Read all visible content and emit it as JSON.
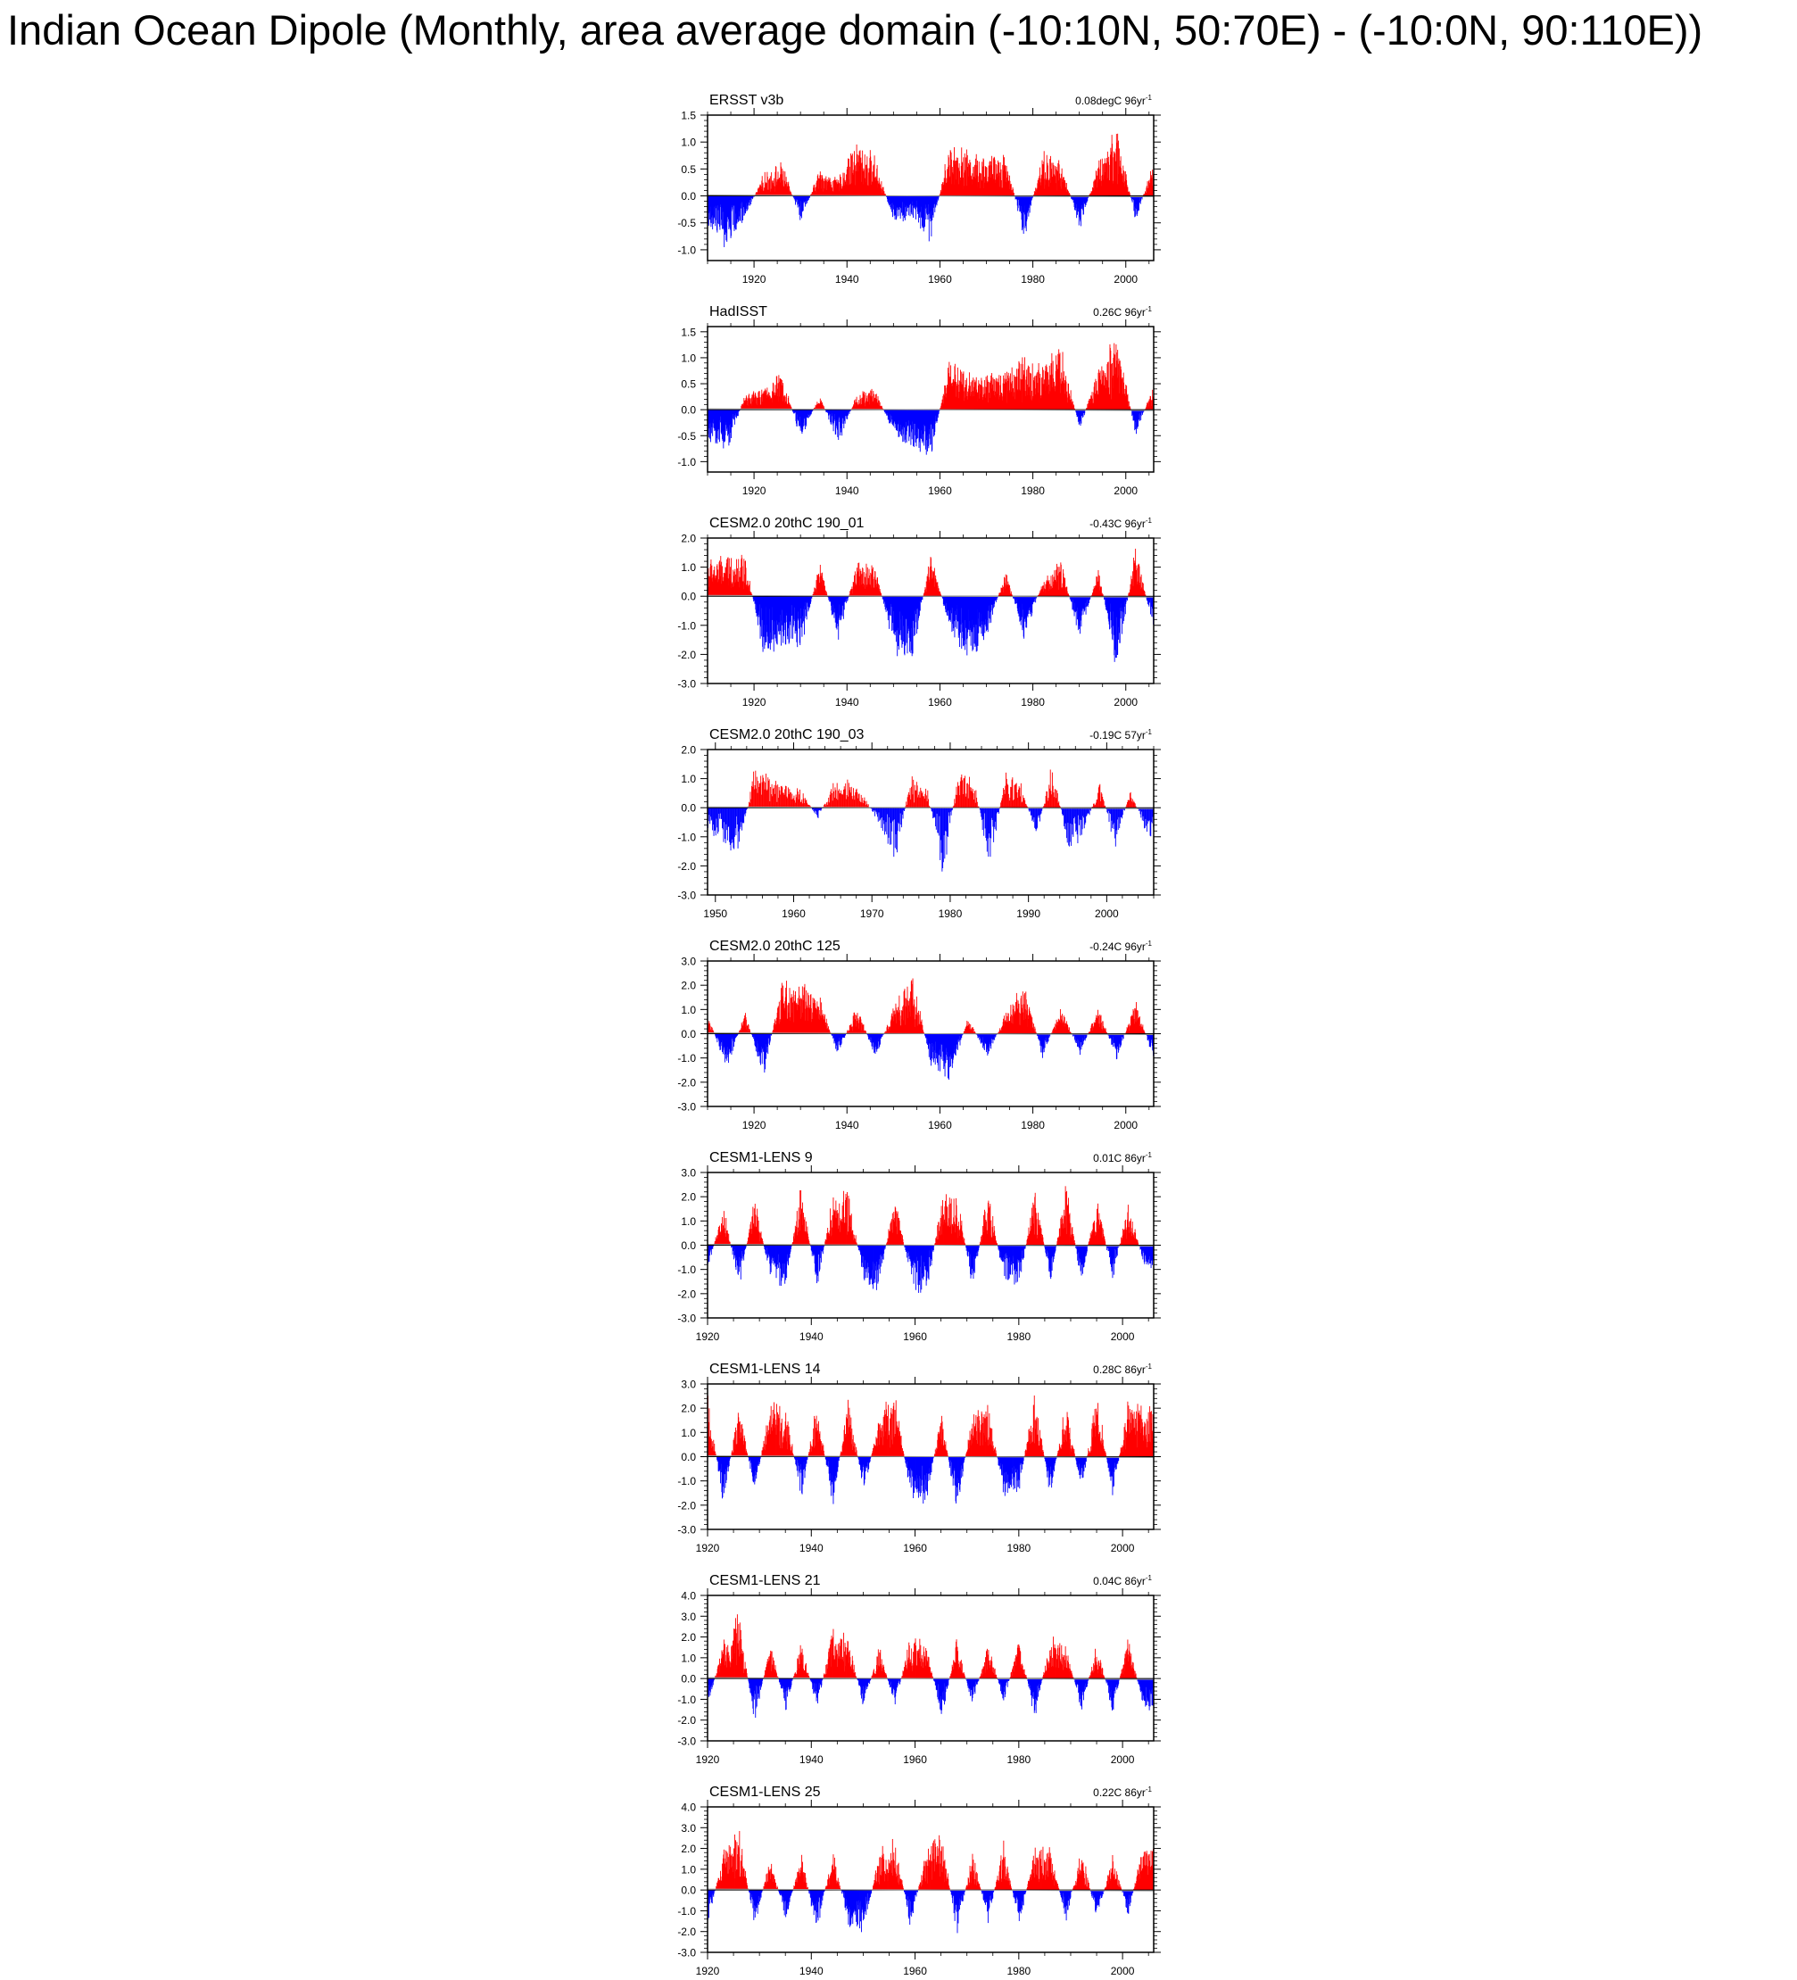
{
  "page": {
    "title": "Indian Ocean Dipole (Monthly, area average domain (-10:10N, 50:70E) - (-10:0N, 90:110E))"
  },
  "colors": {
    "positive": "#ff0000",
    "negative": "#0000ff",
    "axis": "#000000",
    "reference": "#9a9a9a"
  },
  "chart_data": [
    {
      "type": "bar",
      "left_label": "ERSST v3b",
      "right_label": "0.08degC 96yr",
      "right_label_sup": "-1",
      "xlim": [
        1910,
        2006
      ],
      "ylim": [
        -1.2,
        1.5
      ],
      "yticks": [
        -1.0,
        -0.5,
        0.0,
        0.5,
        1.0,
        1.5
      ],
      "ytick_labels": [
        "-1.0",
        "-0.5",
        "0.0",
        "0.5",
        "1.0",
        "1.5"
      ],
      "xticks": [
        1920,
        1940,
        1960,
        1980,
        2000
      ],
      "xtick_labels": [
        "1920",
        "1940",
        "1960",
        "1980",
        "2000"
      ],
      "series_years": [
        1910,
        1914,
        1918,
        1922,
        1926,
        1930,
        1934,
        1938,
        1942,
        1946,
        1950,
        1954,
        1958,
        1962,
        1966,
        1970,
        1974,
        1978,
        1982,
        1986,
        1990,
        1994,
        1998,
        2002,
        2006
      ],
      "values": [
        -0.6,
        -0.9,
        -0.4,
        0.4,
        0.6,
        -0.5,
        0.5,
        0.3,
        1.0,
        0.7,
        -0.5,
        -0.4,
        -0.8,
        1.0,
        0.8,
        0.7,
        0.8,
        -0.8,
        0.8,
        0.6,
        -0.6,
        0.6,
        1.3,
        -0.5,
        0.7
      ]
    },
    {
      "type": "bar",
      "left_label": "HadISST",
      "right_label": "0.26C 96yr",
      "right_label_sup": "-1",
      "xlim": [
        1910,
        2006
      ],
      "ylim": [
        -1.2,
        1.6
      ],
      "yticks": [
        -1.0,
        -0.5,
        0.0,
        0.5,
        1.0,
        1.5
      ],
      "ytick_labels": [
        "-1.0",
        "-0.5",
        "0.0",
        "0.5",
        "1.0",
        "1.5"
      ],
      "xticks": [
        1920,
        1940,
        1960,
        1980,
        2000
      ],
      "xtick_labels": [
        "1920",
        "1940",
        "1960",
        "1980",
        "2000"
      ],
      "series_years": [
        1910,
        1914,
        1918,
        1922,
        1926,
        1930,
        1934,
        1938,
        1942,
        1946,
        1950,
        1954,
        1958,
        1962,
        1966,
        1970,
        1974,
        1978,
        1982,
        1986,
        1990,
        1994,
        1998,
        2002,
        2006
      ],
      "values": [
        -0.6,
        -0.8,
        0.3,
        0.4,
        0.7,
        -0.6,
        0.3,
        -0.7,
        0.3,
        0.4,
        -0.5,
        -0.7,
        -0.9,
        1.0,
        0.7,
        0.6,
        0.8,
        1.0,
        0.8,
        1.2,
        -0.4,
        0.8,
        1.5,
        -0.5,
        0.5
      ]
    },
    {
      "type": "bar",
      "left_label": "CESM2.0 20thC 190_01",
      "right_label": "-0.43C 96yr",
      "right_label_sup": "-1",
      "xlim": [
        1910,
        2006
      ],
      "ylim": [
        -3.0,
        2.0
      ],
      "yticks": [
        -3.0,
        -2.0,
        -1.0,
        0.0,
        1.0,
        2.0
      ],
      "ytick_labels": [
        "-3.0",
        "-2.0",
        "-1.0",
        "0.0",
        "1.0",
        "2.0"
      ],
      "xticks": [
        1920,
        1940,
        1960,
        1980,
        2000
      ],
      "xtick_labels": [
        "1920",
        "1940",
        "1960",
        "1980",
        "2000"
      ],
      "series_years": [
        1910,
        1914,
        1918,
        1922,
        1926,
        1930,
        1934,
        1938,
        1942,
        1946,
        1950,
        1954,
        1958,
        1962,
        1966,
        1970,
        1974,
        1978,
        1982,
        1986,
        1990,
        1994,
        1998,
        2002,
        2006
      ],
      "values": [
        1.2,
        1.3,
        1.4,
        -2.1,
        -1.6,
        -1.9,
        1.2,
        -1.5,
        1.1,
        1.0,
        -1.8,
        -2.2,
        1.6,
        -1.2,
        -2.2,
        -1.4,
        0.9,
        -1.4,
        0.5,
        1.2,
        -1.5,
        1.0,
        -2.6,
        1.7,
        -1.3
      ]
    },
    {
      "type": "bar",
      "left_label": "CESM2.0 20thC 190_03",
      "right_label": "-0.19C 57yr",
      "right_label_sup": "-1",
      "xlim": [
        1949,
        2006
      ],
      "ylim": [
        -3.0,
        2.0
      ],
      "yticks": [
        -3.0,
        -2.0,
        -1.0,
        0.0,
        1.0,
        2.0
      ],
      "ytick_labels": [
        "-3.0",
        "-2.0",
        "-1.0",
        "0.0",
        "1.0",
        "2.0"
      ],
      "xticks": [
        1950,
        1960,
        1970,
        1980,
        1990,
        2000
      ],
      "xtick_labels": [
        "1950",
        "1960",
        "1970",
        "1980",
        "1990",
        "2000"
      ],
      "series_years": [
        1949,
        1951,
        1953,
        1955,
        1957,
        1959,
        1961,
        1963,
        1965,
        1967,
        1969,
        1971,
        1973,
        1975,
        1977,
        1979,
        1981,
        1983,
        1985,
        1987,
        1989,
        1991,
        1993,
        1995,
        1997,
        1999,
        2001,
        2003,
        2005
      ],
      "values": [
        -0.7,
        -1.2,
        -1.6,
        1.5,
        1.0,
        0.8,
        0.6,
        -0.4,
        0.8,
        0.9,
        0.4,
        -0.7,
        -1.8,
        1.2,
        0.7,
        -2.4,
        1.3,
        1.0,
        -2.2,
        1.2,
        0.8,
        -1.0,
        1.5,
        -1.4,
        -1.0,
        0.9,
        -1.3,
        0.6,
        -0.9
      ]
    },
    {
      "type": "bar",
      "left_label": "CESM2.0 20thC 125",
      "right_label": "-0.24C 96yr",
      "right_label_sup": "-1",
      "xlim": [
        1910,
        2006
      ],
      "ylim": [
        -3.0,
        3.0
      ],
      "yticks": [
        -3.0,
        -2.0,
        -1.0,
        0.0,
        1.0,
        2.0,
        3.0
      ],
      "ytick_labels": [
        "-3.0",
        "-2.0",
        "-1.0",
        "0.0",
        "1.0",
        "2.0",
        "3.0"
      ],
      "xticks": [
        1920,
        1940,
        1960,
        1980,
        2000
      ],
      "xtick_labels": [
        "1920",
        "1940",
        "1960",
        "1980",
        "2000"
      ],
      "series_years": [
        1910,
        1914,
        1918,
        1922,
        1926,
        1930,
        1934,
        1938,
        1942,
        1946,
        1950,
        1954,
        1958,
        1962,
        1966,
        1970,
        1974,
        1978,
        1982,
        1986,
        1990,
        1994,
        1998,
        2002,
        2006
      ],
      "values": [
        0.8,
        -1.5,
        0.9,
        -1.8,
        2.3,
        2.0,
        1.5,
        -0.9,
        1.2,
        -1.0,
        1.1,
        2.4,
        -1.3,
        -1.9,
        0.7,
        -1.0,
        0.8,
        2.1,
        -1.0,
        1.2,
        -0.9,
        1.1,
        -1.1,
        1.4,
        -1.2
      ]
    },
    {
      "type": "bar",
      "left_label": "CESM1-LENS 9",
      "right_label": "0.01C 86yr",
      "right_label_sup": "-1",
      "xlim": [
        1920,
        2006
      ],
      "ylim": [
        -3.0,
        3.0
      ],
      "yticks": [
        -3.0,
        -2.0,
        -1.0,
        0.0,
        1.0,
        2.0,
        3.0
      ],
      "ytick_labels": [
        "-3.0",
        "-2.0",
        "-1.0",
        "0.0",
        "1.0",
        "2.0",
        "3.0"
      ],
      "xticks": [
        1920,
        1940,
        1960,
        1980,
        2000
      ],
      "xtick_labels": [
        "1920",
        "1940",
        "1960",
        "1980",
        "2000"
      ],
      "series_years": [
        1920,
        1923,
        1926,
        1929,
        1932,
        1935,
        1938,
        1941,
        1944,
        1947,
        1950,
        1953,
        1956,
        1959,
        1962,
        1965,
        1968,
        1971,
        1974,
        1977,
        1980,
        1983,
        1986,
        1989,
        1992,
        1995,
        1998,
        2001,
        2004
      ],
      "values": [
        -1.0,
        1.6,
        -1.8,
        2.0,
        -1.4,
        -1.7,
        2.6,
        -1.9,
        2.0,
        2.4,
        -1.5,
        -1.8,
        2.2,
        -1.4,
        -2.3,
        1.8,
        2.3,
        -1.9,
        2.3,
        -1.5,
        -1.9,
        2.5,
        -1.6,
        2.5,
        -1.6,
        2.1,
        -1.5,
        1.9,
        -0.9
      ]
    },
    {
      "type": "bar",
      "left_label": "CESM1-LENS 14",
      "right_label": "0.28C 86yr",
      "right_label_sup": "-1",
      "xlim": [
        1920,
        2006
      ],
      "ylim": [
        -3.0,
        3.0
      ],
      "yticks": [
        -3.0,
        -2.0,
        -1.0,
        0.0,
        1.0,
        2.0,
        3.0
      ],
      "ytick_labels": [
        "-3.0",
        "-2.0",
        "-1.0",
        "0.0",
        "1.0",
        "2.0",
        "3.0"
      ],
      "xticks": [
        1920,
        1940,
        1960,
        1980,
        2000
      ],
      "xtick_labels": [
        "1920",
        "1940",
        "1960",
        "1980",
        "2000"
      ],
      "series_years": [
        1920,
        1923,
        1926,
        1929,
        1932,
        1935,
        1938,
        1941,
        1944,
        1947,
        1950,
        1953,
        1956,
        1959,
        1962,
        1965,
        1968,
        1971,
        1974,
        1977,
        1980,
        1983,
        1986,
        1989,
        1992,
        1995,
        1998,
        2001,
        2004
      ],
      "values": [
        2.3,
        -2.0,
        2.2,
        -1.6,
        2.3,
        2.1,
        -1.8,
        2.4,
        -2.2,
        2.5,
        -1.5,
        1.6,
        2.6,
        -1.6,
        -2.0,
        1.8,
        -2.4,
        2.0,
        2.3,
        -1.7,
        -1.3,
        2.6,
        -1.7,
        2.3,
        -1.5,
        2.7,
        -1.8,
        2.4,
        2.0
      ]
    },
    {
      "type": "bar",
      "left_label": "CESM1-LENS 21",
      "right_label": "0.04C 86yr",
      "right_label_sup": "-1",
      "xlim": [
        1920,
        2006
      ],
      "ylim": [
        -3.0,
        4.0
      ],
      "yticks": [
        -3.0,
        -2.0,
        -1.0,
        0.0,
        1.0,
        2.0,
        3.0,
        4.0
      ],
      "ytick_labels": [
        "-3.0",
        "-2.0",
        "-1.0",
        "0.0",
        "1.0",
        "2.0",
        "3.0",
        "4.0"
      ],
      "xticks": [
        1920,
        1940,
        1960,
        1980,
        2000
      ],
      "xtick_labels": [
        "1920",
        "1940",
        "1960",
        "1980",
        "2000"
      ],
      "series_years": [
        1920,
        1923,
        1926,
        1929,
        1932,
        1935,
        1938,
        1941,
        1944,
        1947,
        1950,
        1953,
        1956,
        1959,
        1962,
        1965,
        1968,
        1971,
        1974,
        1977,
        1980,
        1983,
        1986,
        1989,
        1992,
        1995,
        1998,
        2001,
        2004
      ],
      "values": [
        -1.4,
        1.8,
        3.0,
        -2.2,
        1.8,
        -1.6,
        1.8,
        -1.5,
        2.3,
        2.0,
        -1.5,
        1.6,
        -1.4,
        2.0,
        1.8,
        -2.0,
        1.8,
        -1.4,
        1.8,
        -1.2,
        1.9,
        -2.0,
        2.0,
        1.6,
        -1.6,
        1.8,
        -1.7,
        2.0,
        -1.5
      ]
    },
    {
      "type": "bar",
      "left_label": "CESM1-LENS 25",
      "right_label": "0.22C 86yr",
      "right_label_sup": "-1",
      "xlim": [
        1920,
        2006
      ],
      "ylim": [
        -3.0,
        4.0
      ],
      "yticks": [
        -3.0,
        -2.0,
        -1.0,
        0.0,
        1.0,
        2.0,
        3.0,
        4.0
      ],
      "ytick_labels": [
        "-3.0",
        "-2.0",
        "-1.0",
        "0.0",
        "1.0",
        "2.0",
        "3.0",
        "4.0"
      ],
      "xticks": [
        1920,
        1940,
        1960,
        1980,
        2000
      ],
      "xtick_labels": [
        "1920",
        "1940",
        "1960",
        "1980",
        "2000"
      ],
      "series_years": [
        1920,
        1923,
        1926,
        1929,
        1932,
        1935,
        1938,
        1941,
        1944,
        1947,
        1950,
        1953,
        1956,
        1959,
        1962,
        1965,
        1968,
        1971,
        1974,
        1977,
        1980,
        1983,
        1986,
        1989,
        1992,
        1995,
        1998,
        2001,
        2004
      ],
      "values": [
        -1.6,
        1.8,
        2.8,
        -1.8,
        1.6,
        -1.5,
        1.8,
        -2.2,
        2.0,
        -1.6,
        -2.2,
        1.8,
        2.5,
        -1.8,
        1.8,
        2.9,
        -2.2,
        1.8,
        -1.5,
        2.2,
        -1.8,
        2.0,
        2.0,
        -1.5,
        2.0,
        -1.5,
        1.7,
        -1.2,
        2.3
      ]
    }
  ]
}
